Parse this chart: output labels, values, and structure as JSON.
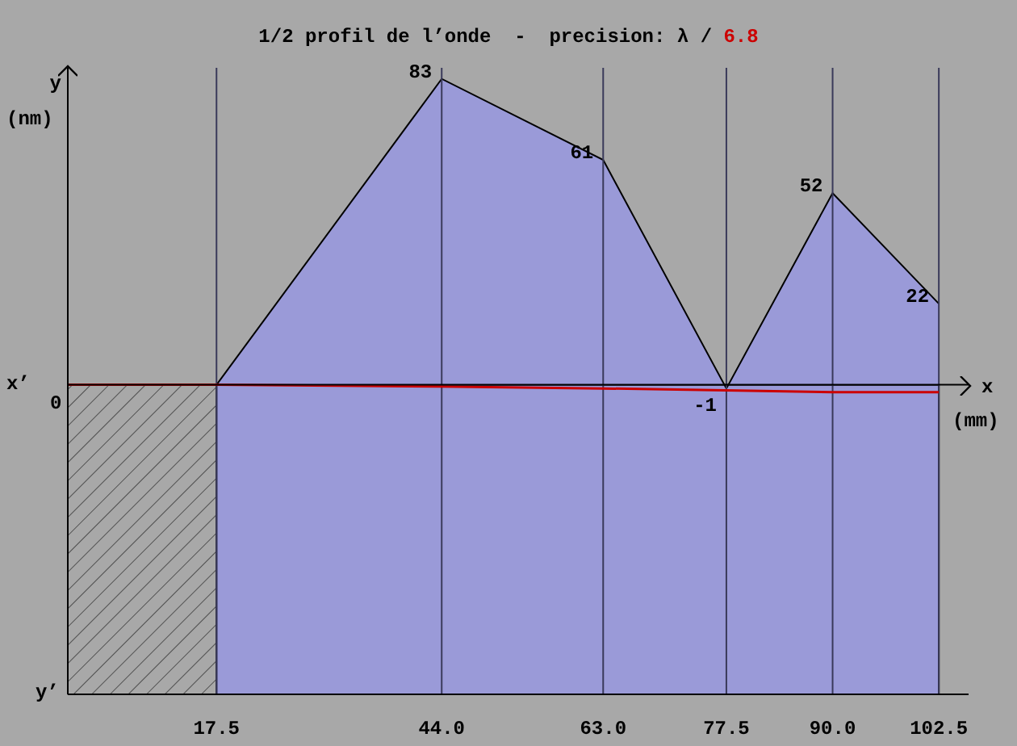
{
  "chart_data": {
    "type": "area",
    "title": "1/2 profil de l’onde  -  precision: λ / 6.8",
    "xlabel": "x (mm)",
    "ylabel": "y (nm)",
    "annotations": [
      "x’",
      "y’",
      "0"
    ],
    "series": [
      {
        "color": "#9a9ad8",
        "x": [
          17.5,
          44,
          63,
          77.5,
          90,
          102.5
        ],
        "values": [
          0,
          83,
          61,
          -1,
          52,
          22
        ],
        "value_labels": [
          null,
          "83",
          "61",
          "-1",
          "52",
          "22"
        ]
      },
      {
        "type": "line",
        "color": "#cc0000",
        "x": [
          0,
          17.5,
          44,
          63,
          77.5,
          90,
          102.5
        ],
        "values": [
          0,
          0,
          -0.5,
          -1,
          -1.5,
          -2,
          -2
        ]
      }
    ],
    "xlim": [
      0,
      106
    ],
    "xticks": [
      {
        "value": 17.5,
        "label": "17.5"
      },
      {
        "value": 44,
        "label": "44.0"
      },
      {
        "value": 63,
        "label": "63.0"
      },
      {
        "value": 77.5,
        "label": "77.5"
      },
      {
        "value": 90,
        "label": "90.0"
      },
      {
        "value": 102.5,
        "label": "102.5"
      }
    ],
    "ylim": [
      -84,
      86
    ],
    "grid": "x",
    "bands": [
      {
        "axis": "x",
        "from": 0,
        "to": 17.5,
        "color": "#888888"
      },
      {
        "axis": "x",
        "from": 17.5,
        "to": 102.5,
        "color": "#9a9ad8"
      }
    ]
  }
}
